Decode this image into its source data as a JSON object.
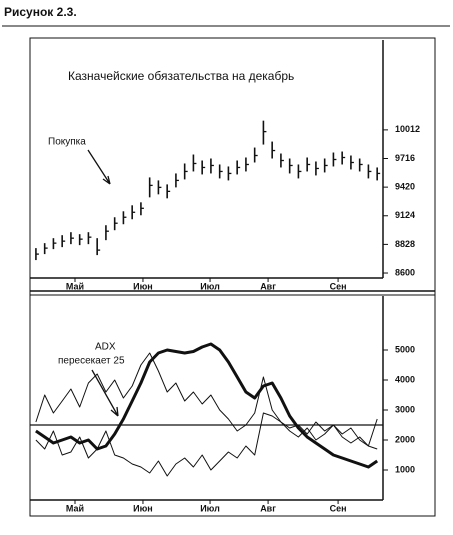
{
  "figure_label": "Рисунок 2.3.",
  "chart_data": [
    {
      "type": "ohlc",
      "title": "Казначейские обязательства на декабрь",
      "annotations": [
        "Покупка"
      ],
      "x": [
        1,
        4,
        7,
        10,
        13,
        16,
        19,
        22,
        25,
        28,
        31,
        34,
        37,
        40,
        43,
        46,
        49,
        52,
        55,
        58,
        61,
        64,
        67,
        70,
        73,
        76,
        79,
        82,
        85,
        88,
        91,
        94,
        97,
        100,
        103,
        106,
        109,
        112,
        115,
        118
      ],
      "high": [
        88.5,
        89.0,
        89.5,
        89.8,
        90.1,
        89.9,
        90.1,
        89.5,
        90.8,
        91.6,
        92.2,
        92.8,
        93.1,
        95.6,
        95.3,
        94.9,
        96.0,
        97.0,
        97.9,
        97.3,
        97.5,
        96.9,
        96.7,
        97.3,
        97.6,
        98.6,
        101.3,
        99.2,
        98.0,
        97.5,
        96.9,
        97.6,
        97.2,
        97.5,
        98.1,
        98.2,
        97.8,
        97.5,
        96.9,
        96.6
      ],
      "low": [
        87.3,
        87.9,
        88.4,
        88.6,
        88.9,
        88.8,
        88.9,
        87.8,
        89.3,
        90.3,
        90.9,
        91.4,
        91.8,
        93.6,
        93.9,
        93.5,
        94.6,
        95.4,
        96.2,
        95.9,
        96.0,
        95.5,
        95.3,
        95.9,
        96.2,
        97.1,
        98.9,
        97.5,
        96.6,
        96.0,
        95.5,
        96.2,
        95.8,
        96.1,
        96.7,
        96.9,
        96.4,
        96.2,
        95.5,
        95.3
      ],
      "close": [
        87.9,
        88.5,
        89.0,
        89.2,
        89.5,
        89.4,
        89.6,
        88.3,
        90.2,
        91.0,
        91.6,
        92.1,
        92.5,
        94.8,
        94.6,
        94.2,
        95.3,
        96.2,
        97.0,
        96.6,
        96.8,
        96.2,
        96.0,
        96.6,
        96.9,
        97.8,
        100.2,
        98.3,
        97.3,
        96.8,
        96.2,
        96.9,
        96.5,
        96.8,
        97.4,
        97.6,
        97.1,
        96.9,
        96.2,
        96.0
      ],
      "color": "#111111",
      "xlim": [
        0,
        120
      ],
      "xticks": [
        {
          "value": 14.4,
          "label": "Май"
        },
        {
          "value": 37.7,
          "label": "Июн"
        },
        {
          "value": 60.7,
          "label": "Июл"
        },
        {
          "value": 80.6,
          "label": "Авг"
        },
        {
          "value": 104.6,
          "label": "Сен"
        }
      ],
      "ylim": [
        85.5,
        109.4
      ],
      "yticks": [
        {
          "value": 86.0,
          "label": "8600"
        },
        {
          "value": 88.875,
          "label": "8828"
        },
        {
          "value": 91.75,
          "label": "9124"
        },
        {
          "value": 94.625,
          "label": "9420"
        },
        {
          "value": 97.5,
          "label": "9716"
        },
        {
          "value": 100.375,
          "label": "10012"
        }
      ]
    },
    {
      "type": "line",
      "annotations": [
        "ADX",
        "пересекает 25"
      ],
      "x": [
        1,
        4,
        7,
        10,
        13,
        16,
        19,
        22,
        25,
        28,
        31,
        34,
        37,
        40,
        43,
        46,
        49,
        52,
        55,
        58,
        61,
        64,
        67,
        70,
        73,
        76,
        79,
        82,
        85,
        88,
        91,
        94,
        97,
        100,
        103,
        106,
        109,
        112,
        115,
        118
      ],
      "series": [
        {
          "color": "#111111",
          "width": 3,
          "values": [
            2300,
            2100,
            1900,
            2000,
            2100,
            1900,
            2000,
            1700,
            1800,
            2200,
            2700,
            3300,
            3900,
            4600,
            4900,
            5000,
            4950,
            4900,
            4950,
            5100,
            5200,
            5000,
            4600,
            4100,
            3600,
            3400,
            3800,
            3900,
            3400,
            2800,
            2400,
            2100,
            1900,
            1700,
            1500,
            1400,
            1300,
            1200,
            1100,
            1300
          ]
        },
        {
          "color": "#111111",
          "width": 1,
          "values": [
            2600,
            3500,
            2900,
            3300,
            3700,
            3100,
            3900,
            4200,
            3600,
            4000,
            3400,
            3800,
            4500,
            4900,
            4300,
            3600,
            3900,
            3300,
            3600,
            3200,
            3500,
            3000,
            2700,
            2300,
            2500,
            2900,
            4100,
            3000,
            2600,
            2400,
            2500,
            2200,
            2600,
            2300,
            2500,
            2200,
            2400,
            2000,
            1800,
            2700
          ]
        },
        {
          "color": "#111111",
          "width": 1,
          "values": [
            2000,
            1700,
            2300,
            1500,
            1600,
            2100,
            1400,
            1700,
            2300,
            1500,
            1400,
            1200,
            1100,
            900,
            1300,
            800,
            1200,
            1400,
            1100,
            1500,
            1000,
            1300,
            1600,
            1400,
            1800,
            1500,
            2900,
            2800,
            2600,
            2300,
            2100,
            2400,
            2000,
            2200,
            2500,
            2100,
            1900,
            2100,
            1800,
            1700
          ]
        }
      ],
      "reference_line": 2500,
      "xlim": [
        0,
        120
      ],
      "xticks": [
        {
          "value": 14.4,
          "label": "Май"
        },
        {
          "value": 37.7,
          "label": "Июн"
        },
        {
          "value": 60.7,
          "label": "Июл"
        },
        {
          "value": 80.6,
          "label": "Авг"
        },
        {
          "value": 104.6,
          "label": "Сен"
        }
      ],
      "ylim": [
        0,
        6800
      ],
      "yticks": [
        1000,
        2000,
        3000,
        4000,
        5000
      ]
    }
  ]
}
